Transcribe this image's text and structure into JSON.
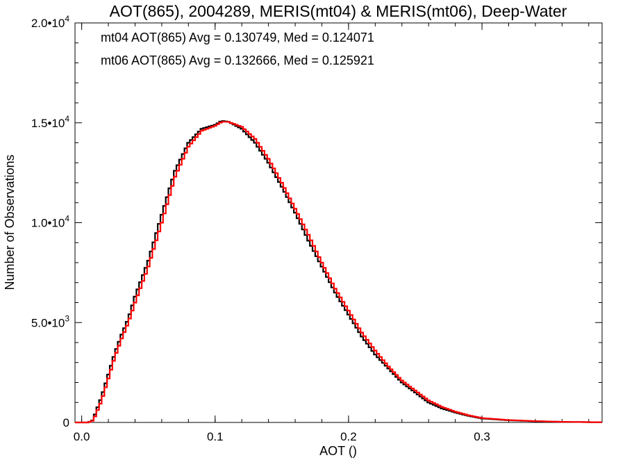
{
  "chart_data": {
    "type": "line",
    "title": "AOT(865), 2004289, MERIS(mt04) & MERIS(mt06), Deep-Water",
    "xlabel": "AOT ()",
    "ylabel": "Number of Observations",
    "xlim": [
      -0.005,
      0.39
    ],
    "ylim": [
      0,
      20000
    ],
    "x_ticks": [
      {
        "value": 0.0,
        "label": "0.0"
      },
      {
        "value": 0.1,
        "label": "0.1"
      },
      {
        "value": 0.2,
        "label": "0.2"
      },
      {
        "value": 0.3,
        "label": "0.3"
      }
    ],
    "y_ticks": [
      {
        "value": 0,
        "mant": "0",
        "exp": ""
      },
      {
        "value": 5000,
        "mant": "5.0•10",
        "exp": "3"
      },
      {
        "value": 10000,
        "mant": "1.0•10",
        "exp": "4"
      },
      {
        "value": 15000,
        "mant": "1.5•10",
        "exp": "4"
      },
      {
        "value": 20000,
        "mant": "2.0•10",
        "exp": "4"
      }
    ],
    "grid": false,
    "legend": [
      {
        "text": "mt04 AOT(865) Avg = 0.130749, Med = 0.124071",
        "color": "#000000"
      },
      {
        "text": "mt06 AOT(865) Avg = 0.132666, Med = 0.125921",
        "color": "#ff0000"
      }
    ],
    "series": [
      {
        "color": "#000000",
        "x": [
          -0.005,
          0.005,
          0.008,
          0.01,
          0.015,
          0.02,
          0.025,
          0.03,
          0.035,
          0.04,
          0.05,
          0.06,
          0.07,
          0.08,
          0.09,
          0.1,
          0.105,
          0.11,
          0.12,
          0.13,
          0.14,
          0.15,
          0.16,
          0.17,
          0.18,
          0.19,
          0.2,
          0.21,
          0.22,
          0.23,
          0.24,
          0.25,
          0.26,
          0.27,
          0.28,
          0.29,
          0.3,
          0.32,
          0.34,
          0.36,
          0.38,
          0.39
        ],
        "y": [
          0,
          0,
          100,
          400,
          1300,
          2400,
          3500,
          4400,
          5200,
          6300,
          8100,
          10400,
          12600,
          14000,
          14700,
          14900,
          15100,
          15050,
          14700,
          14000,
          13000,
          11800,
          10500,
          9100,
          7800,
          6500,
          5400,
          4300,
          3400,
          2700,
          2000,
          1500,
          1000,
          700,
          500,
          330,
          200,
          110,
          60,
          30,
          15,
          10
        ]
      },
      {
        "color": "#ff0000",
        "x": [
          -0.005,
          0.005,
          0.008,
          0.01,
          0.015,
          0.02,
          0.025,
          0.03,
          0.035,
          0.04,
          0.05,
          0.06,
          0.07,
          0.08,
          0.09,
          0.1,
          0.105,
          0.11,
          0.12,
          0.13,
          0.14,
          0.15,
          0.16,
          0.17,
          0.18,
          0.19,
          0.2,
          0.21,
          0.22,
          0.23,
          0.24,
          0.25,
          0.26,
          0.27,
          0.28,
          0.29,
          0.3,
          0.32,
          0.34,
          0.36,
          0.38,
          0.39
        ],
        "y": [
          0,
          0,
          80,
          300,
          1100,
          2200,
          3300,
          4200,
          5000,
          6000,
          7800,
          10000,
          12300,
          13800,
          14600,
          14850,
          15050,
          15050,
          14800,
          14200,
          13200,
          12000,
          10700,
          9400,
          8000,
          6700,
          5600,
          4500,
          3600,
          2800,
          2100,
          1600,
          1100,
          780,
          540,
          360,
          220,
          120,
          65,
          32,
          16,
          10
        ]
      }
    ]
  }
}
